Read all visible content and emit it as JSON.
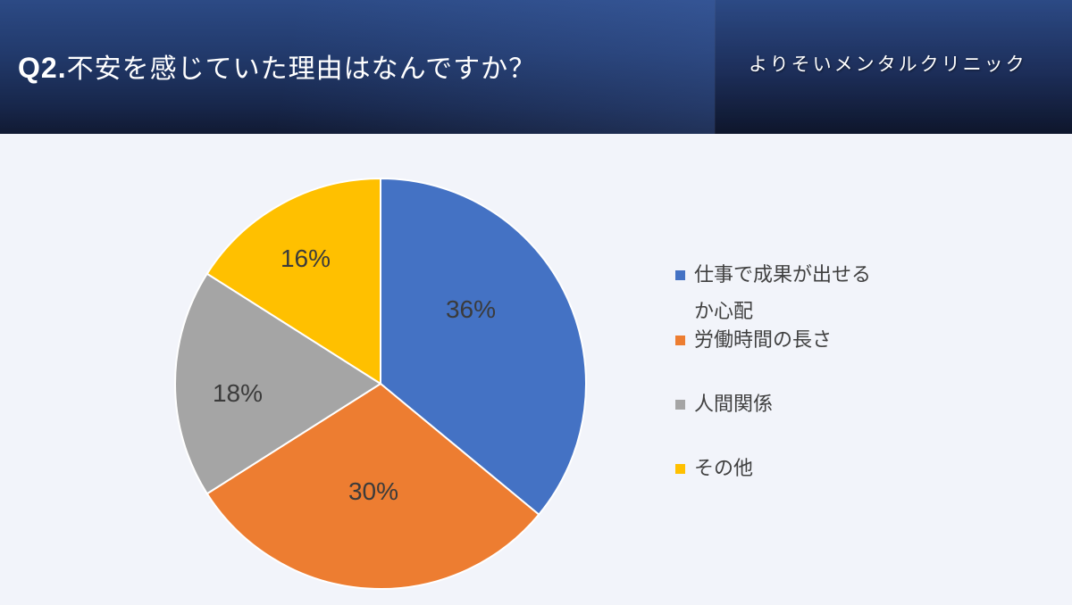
{
  "header": {
    "question_number": "Q2.",
    "question_text": "不安を感じていた理由はなんですか？",
    "clinic_name": "よりそいメンタルクリニック"
  },
  "legend": {
    "items": [
      {
        "label": "仕事で成果が出せるか心配",
        "color": "#4472c4"
      },
      {
        "label": "労働時間の長さ",
        "color": "#ed7d31"
      },
      {
        "label": "人間関係",
        "color": "#a5a5a5"
      },
      {
        "label": "その他",
        "color": "#ffc000"
      }
    ]
  },
  "slice_labels": {
    "s0": "36%",
    "s1": "30%",
    "s2": "18%",
    "s3": "16%"
  },
  "chart_data": {
    "type": "pie",
    "title": "Q2.不安を感じていた理由はなんですか？",
    "categories": [
      "仕事で成果が出せるか心配",
      "労働時間の長さ",
      "人間関係",
      "その他"
    ],
    "values": [
      36,
      30,
      18,
      16
    ],
    "unit": "%",
    "colors": [
      "#4472c4",
      "#ed7d31",
      "#a5a5a5",
      "#ffc000"
    ],
    "start_angle": "12 o'clock, clockwise",
    "legend_position": "right",
    "data_labels": [
      "36%",
      "30%",
      "18%",
      "16%"
    ]
  }
}
